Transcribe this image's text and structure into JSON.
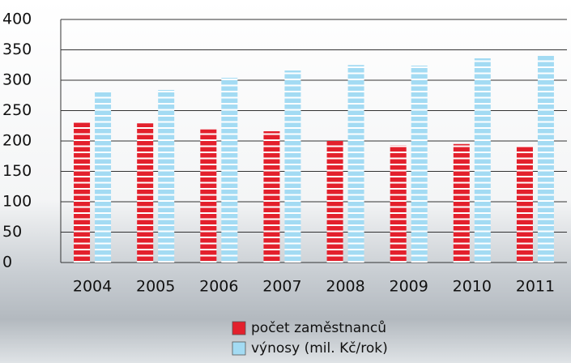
{
  "chart_data": {
    "type": "bar",
    "categories": [
      "2004",
      "2005",
      "2006",
      "2007",
      "2008",
      "2009",
      "2010",
      "2011"
    ],
    "series": [
      {
        "name": "počet zaměstnanců",
        "color": "#e3202c",
        "values": [
          232,
          229,
          219,
          216,
          200,
          193,
          195,
          192
        ]
      },
      {
        "name": "výnosy (mil. Kč/rok)",
        "color": "#a3dbf3",
        "values": [
          281,
          284,
          304,
          316,
          325,
          324,
          336,
          340
        ]
      }
    ],
    "ylim": [
      0,
      400
    ],
    "yticks": [
      0,
      50,
      100,
      150,
      200,
      250,
      300,
      350,
      400
    ],
    "grid": true,
    "legend": "bottom"
  }
}
